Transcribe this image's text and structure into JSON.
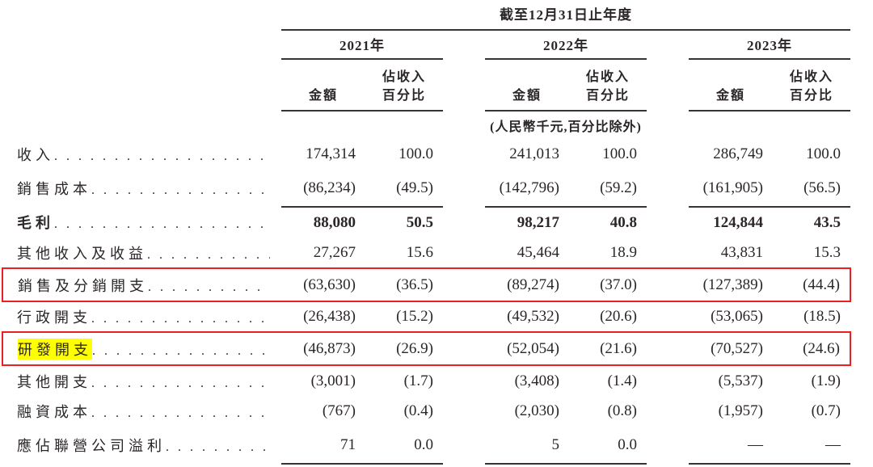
{
  "table": {
    "title": "截至12月31日止年度",
    "note": "(人民幣千元,百分比除外)",
    "year_groups": [
      {
        "label": "2021年"
      },
      {
        "label": "2022年"
      },
      {
        "label": "2023年"
      }
    ],
    "col_headers": {
      "amount": "金額",
      "pct_line1": "佔收入",
      "pct_line2": "百分比"
    },
    "rows": [
      {
        "label": "收入",
        "values": [
          "174,314",
          "100.0",
          "241,013",
          "100.0",
          "286,749",
          "100.0"
        ],
        "bold": false,
        "underline": false,
        "boxed": false,
        "highlight": false
      },
      {
        "label": "銷售成本",
        "values": [
          "(86,234)",
          "(49.5)",
          "(142,796)",
          "(59.2)",
          "(161,905)",
          "(56.5)"
        ],
        "bold": false,
        "underline": true,
        "boxed": false,
        "highlight": false
      },
      {
        "label": "毛利",
        "values": [
          "88,080",
          "50.5",
          "98,217",
          "40.8",
          "124,844",
          "43.5"
        ],
        "bold": true,
        "underline": false,
        "boxed": false,
        "highlight": false
      },
      {
        "label": "其他收入及收益",
        "values": [
          "27,267",
          "15.6",
          "45,464",
          "18.9",
          "43,831",
          "15.3"
        ],
        "bold": false,
        "underline": false,
        "boxed": false,
        "highlight": false
      },
      {
        "label": "銷售及分銷開支",
        "values": [
          "(63,630)",
          "(36.5)",
          "(89,274)",
          "(37.0)",
          "(127,389)",
          "(44.4)"
        ],
        "bold": false,
        "underline": false,
        "boxed": true,
        "highlight": false
      },
      {
        "label": "行政開支",
        "values": [
          "(26,438)",
          "(15.2)",
          "(49,532)",
          "(20.6)",
          "(53,065)",
          "(18.5)"
        ],
        "bold": false,
        "underline": false,
        "boxed": false,
        "highlight": false
      },
      {
        "label": "研發開支",
        "values": [
          "(46,873)",
          "(26.9)",
          "(52,054)",
          "(21.6)",
          "(70,527)",
          "(24.6)"
        ],
        "bold": false,
        "underline": false,
        "boxed": true,
        "highlight": true
      },
      {
        "label": "其他開支",
        "values": [
          "(3,001)",
          "(1.7)",
          "(3,408)",
          "(1.4)",
          "(5,537)",
          "(1.9)"
        ],
        "bold": false,
        "underline": false,
        "boxed": false,
        "highlight": false
      },
      {
        "label": "融資成本",
        "values": [
          "(767)",
          "(0.4)",
          "(2,030)",
          "(0.8)",
          "(1,957)",
          "(0.7)"
        ],
        "bold": false,
        "underline": false,
        "boxed": false,
        "highlight": false
      },
      {
        "label": "應佔聯營公司溢利",
        "values": [
          "71",
          "0.0",
          "5",
          "0.0",
          "—",
          "—"
        ],
        "bold": false,
        "underline": true,
        "boxed": false,
        "highlight": false
      }
    ],
    "colors": {
      "annotation_red": "#ec1f1f",
      "highlight_yellow": "#ffff00",
      "text_ink": "#2b2627"
    }
  }
}
